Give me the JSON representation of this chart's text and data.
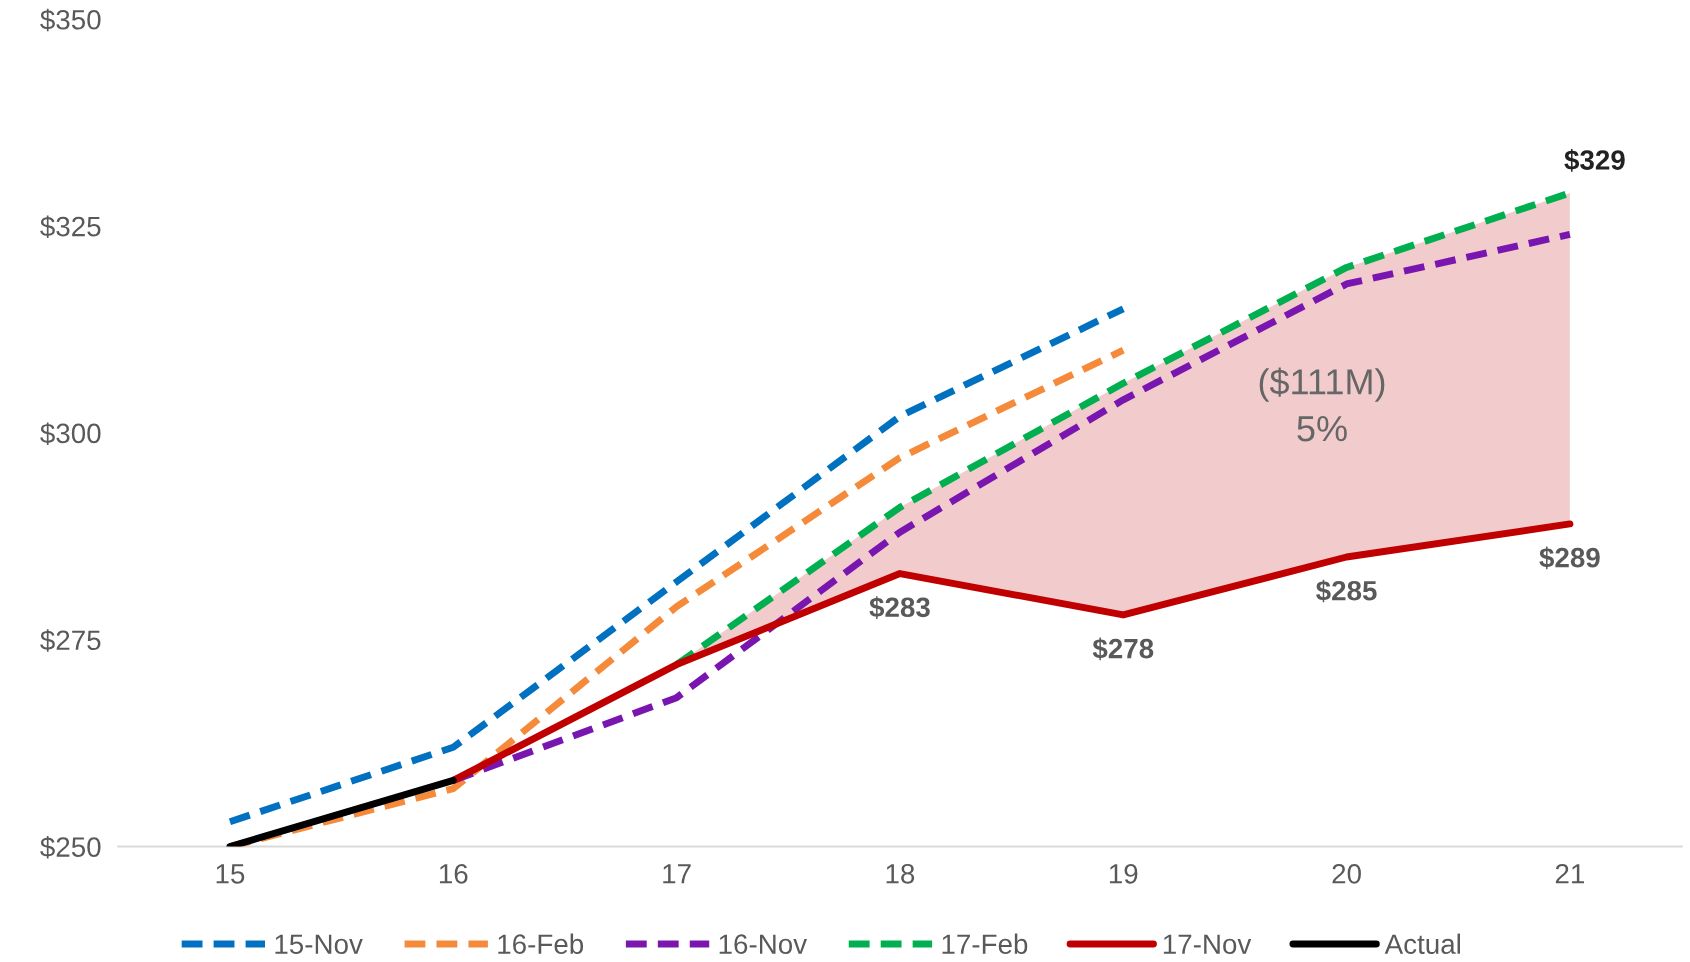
{
  "chart_data": {
    "type": "line",
    "series": [
      {
        "name": "15-Nov",
        "color": "#0070c0",
        "line_style": "dashed",
        "x": [
          15,
          16,
          17,
          18,
          19
        ],
        "values": [
          253,
          262,
          282,
          302,
          315
        ]
      },
      {
        "name": "16-Feb",
        "color": "#f58a3a",
        "line_style": "dashed",
        "x": [
          15,
          16,
          17,
          18,
          19
        ],
        "values": [
          250,
          257,
          279,
          297,
          310
        ]
      },
      {
        "name": "16-Nov",
        "color": "#7a16b0",
        "line_style": "dashed",
        "x": [
          16,
          17,
          18,
          19,
          20,
          21
        ],
        "values": [
          258,
          268,
          288,
          304,
          318,
          324
        ]
      },
      {
        "name": "17-Feb",
        "color": "#00b050",
        "line_style": "dashed",
        "x": [
          17,
          18,
          19,
          20,
          21
        ],
        "values": [
          272,
          291,
          306,
          320,
          329
        ],
        "value_labels": [
          null,
          null,
          null,
          null,
          "$329"
        ]
      },
      {
        "name": "17-Nov",
        "color": "#c00000",
        "line_style": "solid",
        "x": [
          16,
          17,
          18,
          19,
          20,
          21
        ],
        "values": [
          258,
          272,
          283,
          278,
          285,
          289
        ],
        "value_labels": [
          null,
          null,
          "$283",
          "$278",
          "$285",
          "$289"
        ],
        "lower": [
          null,
          272,
          283,
          278,
          285,
          289
        ],
        "upper": [
          null,
          272,
          291,
          306,
          320,
          329
        ]
      },
      {
        "name": "Actual",
        "color": "#000000",
        "line_style": "solid",
        "x": [
          15,
          16
        ],
        "values": [
          250,
          258
        ]
      }
    ],
    "xlim": [
      14.5,
      21.5
    ],
    "xticks": [
      15,
      16,
      17,
      18,
      19,
      20,
      21
    ],
    "ylim": [
      250,
      350
    ],
    "yticks": [
      {
        "value": 250,
        "label": "$250"
      },
      {
        "value": 275,
        "label": "$275"
      },
      {
        "value": 300,
        "label": "$300"
      },
      {
        "value": 325,
        "label": "$325"
      },
      {
        "value": 350,
        "label": "$350"
      }
    ],
    "annotations": [
      "($111M)\n5%"
    ],
    "grid": false,
    "legend": "bottom",
    "marker": "none"
  }
}
